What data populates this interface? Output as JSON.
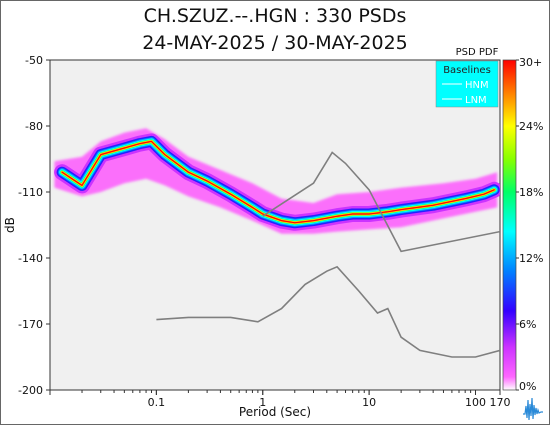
{
  "chart_data": {
    "type": "heatmap",
    "title": "CH.SZUZ.--.HGN : 330 PSDs",
    "subtitle": "24-MAY-2025 / 30-MAY-2025",
    "xlabel": "Period (Sec)",
    "ylabel": "dB",
    "x_scale": "log",
    "xlim": [
      0.01,
      170
    ],
    "ylim": [
      -200,
      -50
    ],
    "x_ticks": [
      {
        "value": 0.1,
        "label": "0.1"
      },
      {
        "value": 1,
        "label": "1"
      },
      {
        "value": 10,
        "label": "10"
      },
      {
        "value": 100,
        "label": "100"
      },
      {
        "value": 170,
        "label": "170"
      }
    ],
    "y_ticks": [
      {
        "value": -50,
        "label": "-50"
      },
      {
        "value": -80,
        "label": "-80"
      },
      {
        "value": -110,
        "label": "-110"
      },
      {
        "value": -140,
        "label": "-140"
      },
      {
        "value": -170,
        "label": "-170"
      },
      {
        "value": -200,
        "label": "-200"
      }
    ],
    "colorbar": {
      "title": "PSD PDF",
      "labels": [
        "30+",
        "24%",
        "18%",
        "12%",
        "6%",
        "0%"
      ],
      "colors": [
        "#ff0000",
        "#ff7f00",
        "#ffff00",
        "#00ff00",
        "#00ffff",
        "#0000ff",
        "#8800ff",
        "#ff00ff",
        "#ffffff"
      ]
    },
    "legend": {
      "title": "Baselines",
      "placement": "top-right",
      "background": "#00ffff",
      "entries": [
        {
          "name": "HNM",
          "color": "#7f7f7f"
        },
        {
          "name": "LNM",
          "color": "#7f7f7f"
        }
      ]
    },
    "mode_line": [
      [
        0.013,
        -101
      ],
      [
        0.02,
        -107
      ],
      [
        0.03,
        -93
      ],
      [
        0.05,
        -90
      ],
      [
        0.07,
        -88
      ],
      [
        0.09,
        -87
      ],
      [
        0.12,
        -93
      ],
      [
        0.2,
        -101
      ],
      [
        0.3,
        -105
      ],
      [
        0.5,
        -111
      ],
      [
        0.8,
        -117
      ],
      [
        1.0,
        -120
      ],
      [
        1.5,
        -123
      ],
      [
        2,
        -124
      ],
      [
        3,
        -123
      ],
      [
        5,
        -121
      ],
      [
        7,
        -120
      ],
      [
        10,
        -120
      ],
      [
        15,
        -119
      ],
      [
        20,
        -118
      ],
      [
        40,
        -116
      ],
      [
        80,
        -113
      ],
      [
        120,
        -111
      ],
      [
        150,
        -109
      ]
    ],
    "pdf_spread_upper": [
      [
        0.011,
        -96
      ],
      [
        0.02,
        -94
      ],
      [
        0.03,
        -87
      ],
      [
        0.05,
        -83
      ],
      [
        0.08,
        -81
      ],
      [
        0.12,
        -86
      ],
      [
        0.2,
        -94
      ],
      [
        0.4,
        -100
      ],
      [
        0.8,
        -106
      ],
      [
        1.5,
        -113
      ],
      [
        3,
        -115
      ],
      [
        5,
        -111
      ],
      [
        10,
        -110
      ],
      [
        20,
        -108
      ],
      [
        50,
        -106
      ],
      [
        100,
        -104
      ],
      [
        160,
        -101
      ]
    ],
    "pdf_spread_lower": [
      [
        0.011,
        -108
      ],
      [
        0.02,
        -112
      ],
      [
        0.03,
        -110
      ],
      [
        0.05,
        -106
      ],
      [
        0.08,
        -104
      ],
      [
        0.12,
        -107
      ],
      [
        0.2,
        -112
      ],
      [
        0.4,
        -117
      ],
      [
        0.8,
        -123
      ],
      [
        1.5,
        -129
      ],
      [
        3,
        -129
      ],
      [
        5,
        -128
      ],
      [
        10,
        -127
      ],
      [
        20,
        -126
      ],
      [
        50,
        -122
      ],
      [
        100,
        -119
      ],
      [
        160,
        -117
      ]
    ],
    "hnm": [
      [
        1.0,
        -121
      ],
      [
        3,
        -106
      ],
      [
        4.5,
        -92
      ],
      [
        6,
        -97
      ],
      [
        10,
        -109
      ],
      [
        20,
        -137
      ],
      [
        170,
        -128
      ]
    ],
    "lnm": [
      [
        0.1,
        -168
      ],
      [
        0.2,
        -167
      ],
      [
        0.5,
        -167
      ],
      [
        0.9,
        -169
      ],
      [
        1.5,
        -163
      ],
      [
        2.5,
        -152
      ],
      [
        4,
        -146
      ],
      [
        5,
        -144
      ],
      [
        8,
        -155
      ],
      [
        12,
        -165
      ],
      [
        15,
        -163
      ],
      [
        20,
        -176
      ],
      [
        30,
        -182
      ],
      [
        60,
        -185
      ],
      [
        100,
        -185
      ],
      [
        170,
        -182
      ]
    ]
  }
}
